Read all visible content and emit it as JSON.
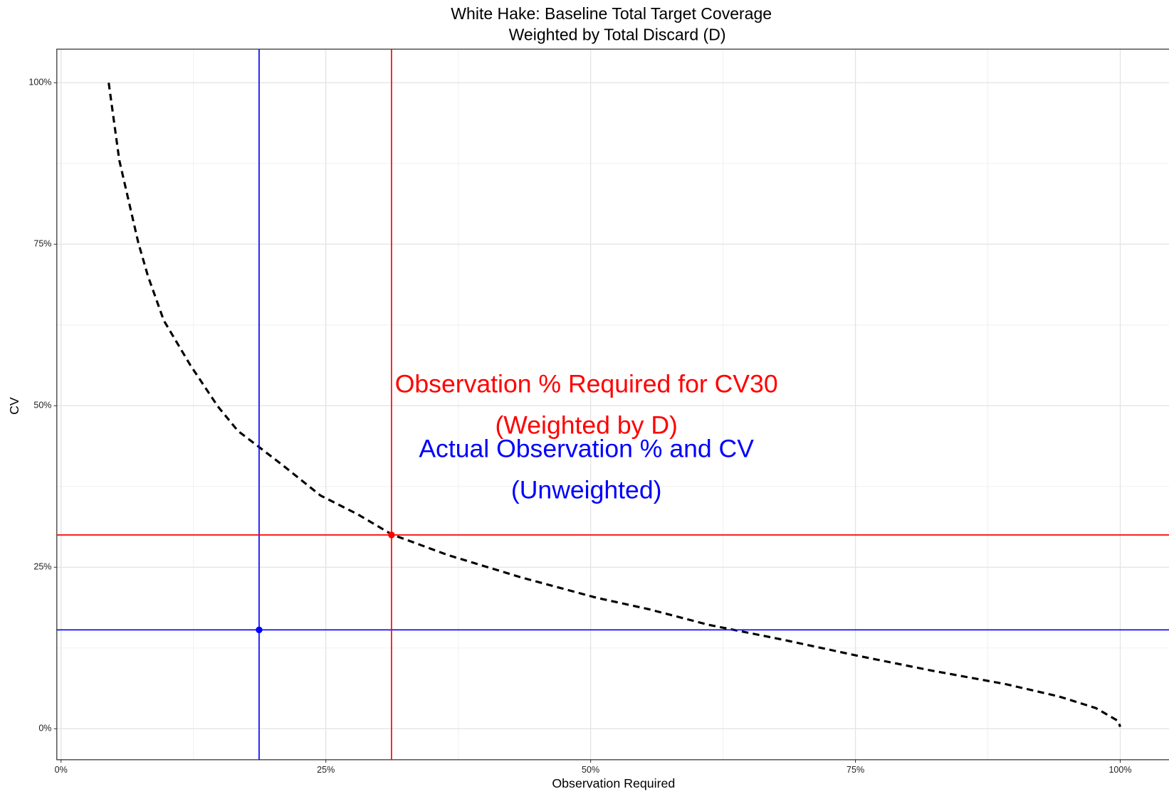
{
  "chart_data": {
    "type": "line",
    "title": "White Hake: Baseline Total Target Coverage",
    "subtitle": "Weighted by Total Discard (D)",
    "x_label": "Observation Required",
    "y_label": "CV",
    "x": [
      4.5,
      5.5,
      7.3,
      8.2,
      9.7,
      12.2,
      14.8,
      16.7,
      18.7,
      21.0,
      24.5,
      28.0,
      31.2,
      36.5,
      43.5,
      50.5,
      55.5,
      61.1,
      68.1,
      75.2,
      82.2,
      89.2,
      94.2,
      97.7,
      99.8,
      100
    ],
    "series": [
      {
        "color": "#000000",
        "dashed": true,
        "values": [
          100,
          88,
          75.2,
          70.1,
          63.2,
          56.3,
          49.9,
          46.1,
          43.6,
          40.7,
          36.1,
          33.2,
          30.1,
          26.9,
          23.4,
          20.3,
          18.5,
          16.1,
          13.8,
          11.3,
          9.0,
          6.9,
          5.0,
          3.2,
          1.2,
          0.3
        ]
      }
    ],
    "markers": [
      {
        "x": 18.7,
        "y": 15.3,
        "color": "#0000ff"
      },
      {
        "x": 31.2,
        "y": 30,
        "color": "#ff0000"
      }
    ],
    "annotations": [
      {
        "text": "Observation % Required for CV30",
        "x": 49.6,
        "y": 53.1,
        "color": "#ff0000"
      },
      {
        "text": "(Weighted by D)",
        "x": 49.6,
        "y": 46.7,
        "color": "#ff0000"
      },
      {
        "text": "Actual Observation % and CV",
        "x": 49.6,
        "y": 43.1,
        "color": "#0000ff"
      },
      {
        "text": "(Unweighted)",
        "x": 49.6,
        "y": 36.7,
        "color": "#0000ff"
      }
    ],
    "xlim": [
      -0.4,
      104.8
    ],
    "ylim": [
      -4.8,
      105.2
    ],
    "xticks": [
      {
        "value": 0,
        "label": "0%"
      },
      {
        "value": 25,
        "label": "25%"
      },
      {
        "value": 50,
        "label": "50%"
      },
      {
        "value": 75,
        "label": "75%"
      },
      {
        "value": 100,
        "label": "100%"
      }
    ],
    "yticks": [
      {
        "value": 0,
        "label": "0%"
      },
      {
        "value": 25,
        "label": "25%"
      },
      {
        "value": 50,
        "label": "50%"
      },
      {
        "value": 75,
        "label": "75%"
      },
      {
        "value": 100,
        "label": "100%"
      }
    ],
    "grid": true
  }
}
